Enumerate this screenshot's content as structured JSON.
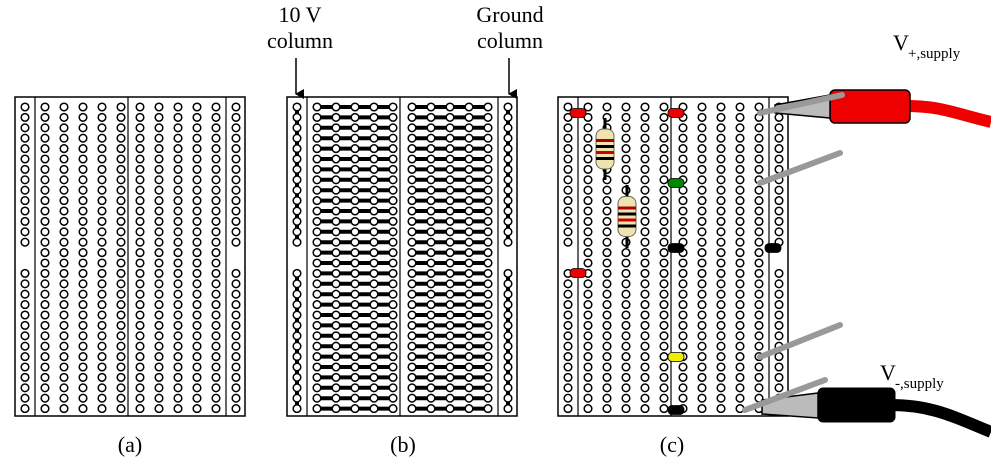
{
  "annotations": {
    "ten_volt": [
      "10 V",
      "column"
    ],
    "ground": [
      "Ground",
      "column"
    ]
  },
  "supply": {
    "positive": {
      "symbol": "V",
      "subscript": "+,supply"
    },
    "negative": {
      "symbol": "V",
      "subscript": "-,supply"
    }
  },
  "captions": [
    "(a)",
    "(b)",
    "(c)"
  ]
}
